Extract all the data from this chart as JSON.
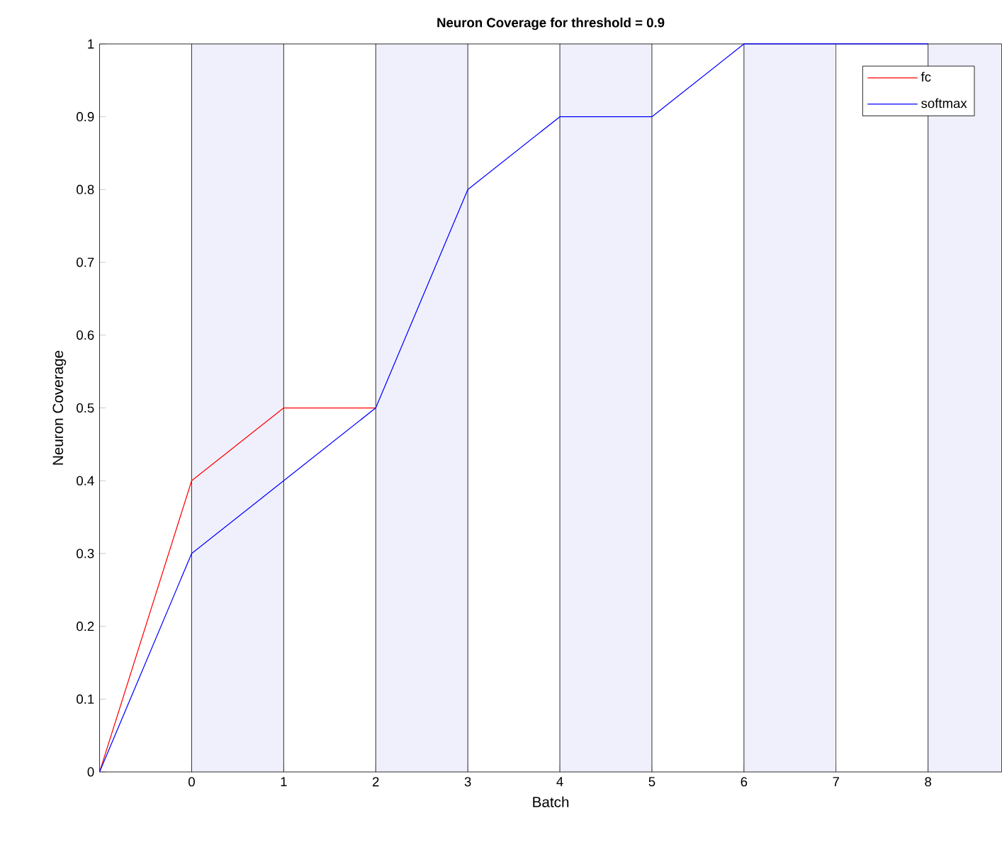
{
  "chart_data": {
    "type": "line",
    "title": "Neuron Coverage for threshold = 0.9",
    "xlabel": "Batch",
    "ylabel": "Neuron Coverage",
    "x": [
      -1,
      0,
      1,
      2,
      3,
      4,
      5,
      6,
      7,
      8
    ],
    "series": [
      {
        "name": "fc",
        "color": "#ff0000",
        "values": [
          0,
          0.4,
          0.5,
          0.5,
          null,
          null,
          null,
          null,
          null,
          null
        ]
      },
      {
        "name": "softmax",
        "color": "#0000ff",
        "values": [
          0,
          0.3,
          0.4,
          0.5,
          0.8,
          0.9,
          0.9,
          1.0,
          1.0,
          1.0
        ]
      }
    ],
    "xlim": [
      -1,
      8.8
    ],
    "ylim": [
      0,
      1
    ],
    "xticks": [
      0,
      1,
      2,
      3,
      4,
      5,
      6,
      7,
      8
    ],
    "yticks": [
      0,
      0.1,
      0.2,
      0.3,
      0.4,
      0.5,
      0.6,
      0.7,
      0.8,
      0.9,
      1
    ],
    "bands": [
      {
        "axis": "x",
        "from": 0,
        "to": 1,
        "color": "#f0f0fc"
      },
      {
        "axis": "x",
        "from": 2,
        "to": 3,
        "color": "#f0f0fc"
      },
      {
        "axis": "x",
        "from": 4,
        "to": 5,
        "color": "#f0f0fc"
      },
      {
        "axis": "x",
        "from": 6,
        "to": 7,
        "color": "#f0f0fc"
      },
      {
        "axis": "x",
        "from": 8,
        "to": 8.8,
        "color": "#f0f0fc"
      }
    ],
    "grid": false,
    "legend": "top right",
    "marker": "none",
    "line_style": "solid"
  }
}
